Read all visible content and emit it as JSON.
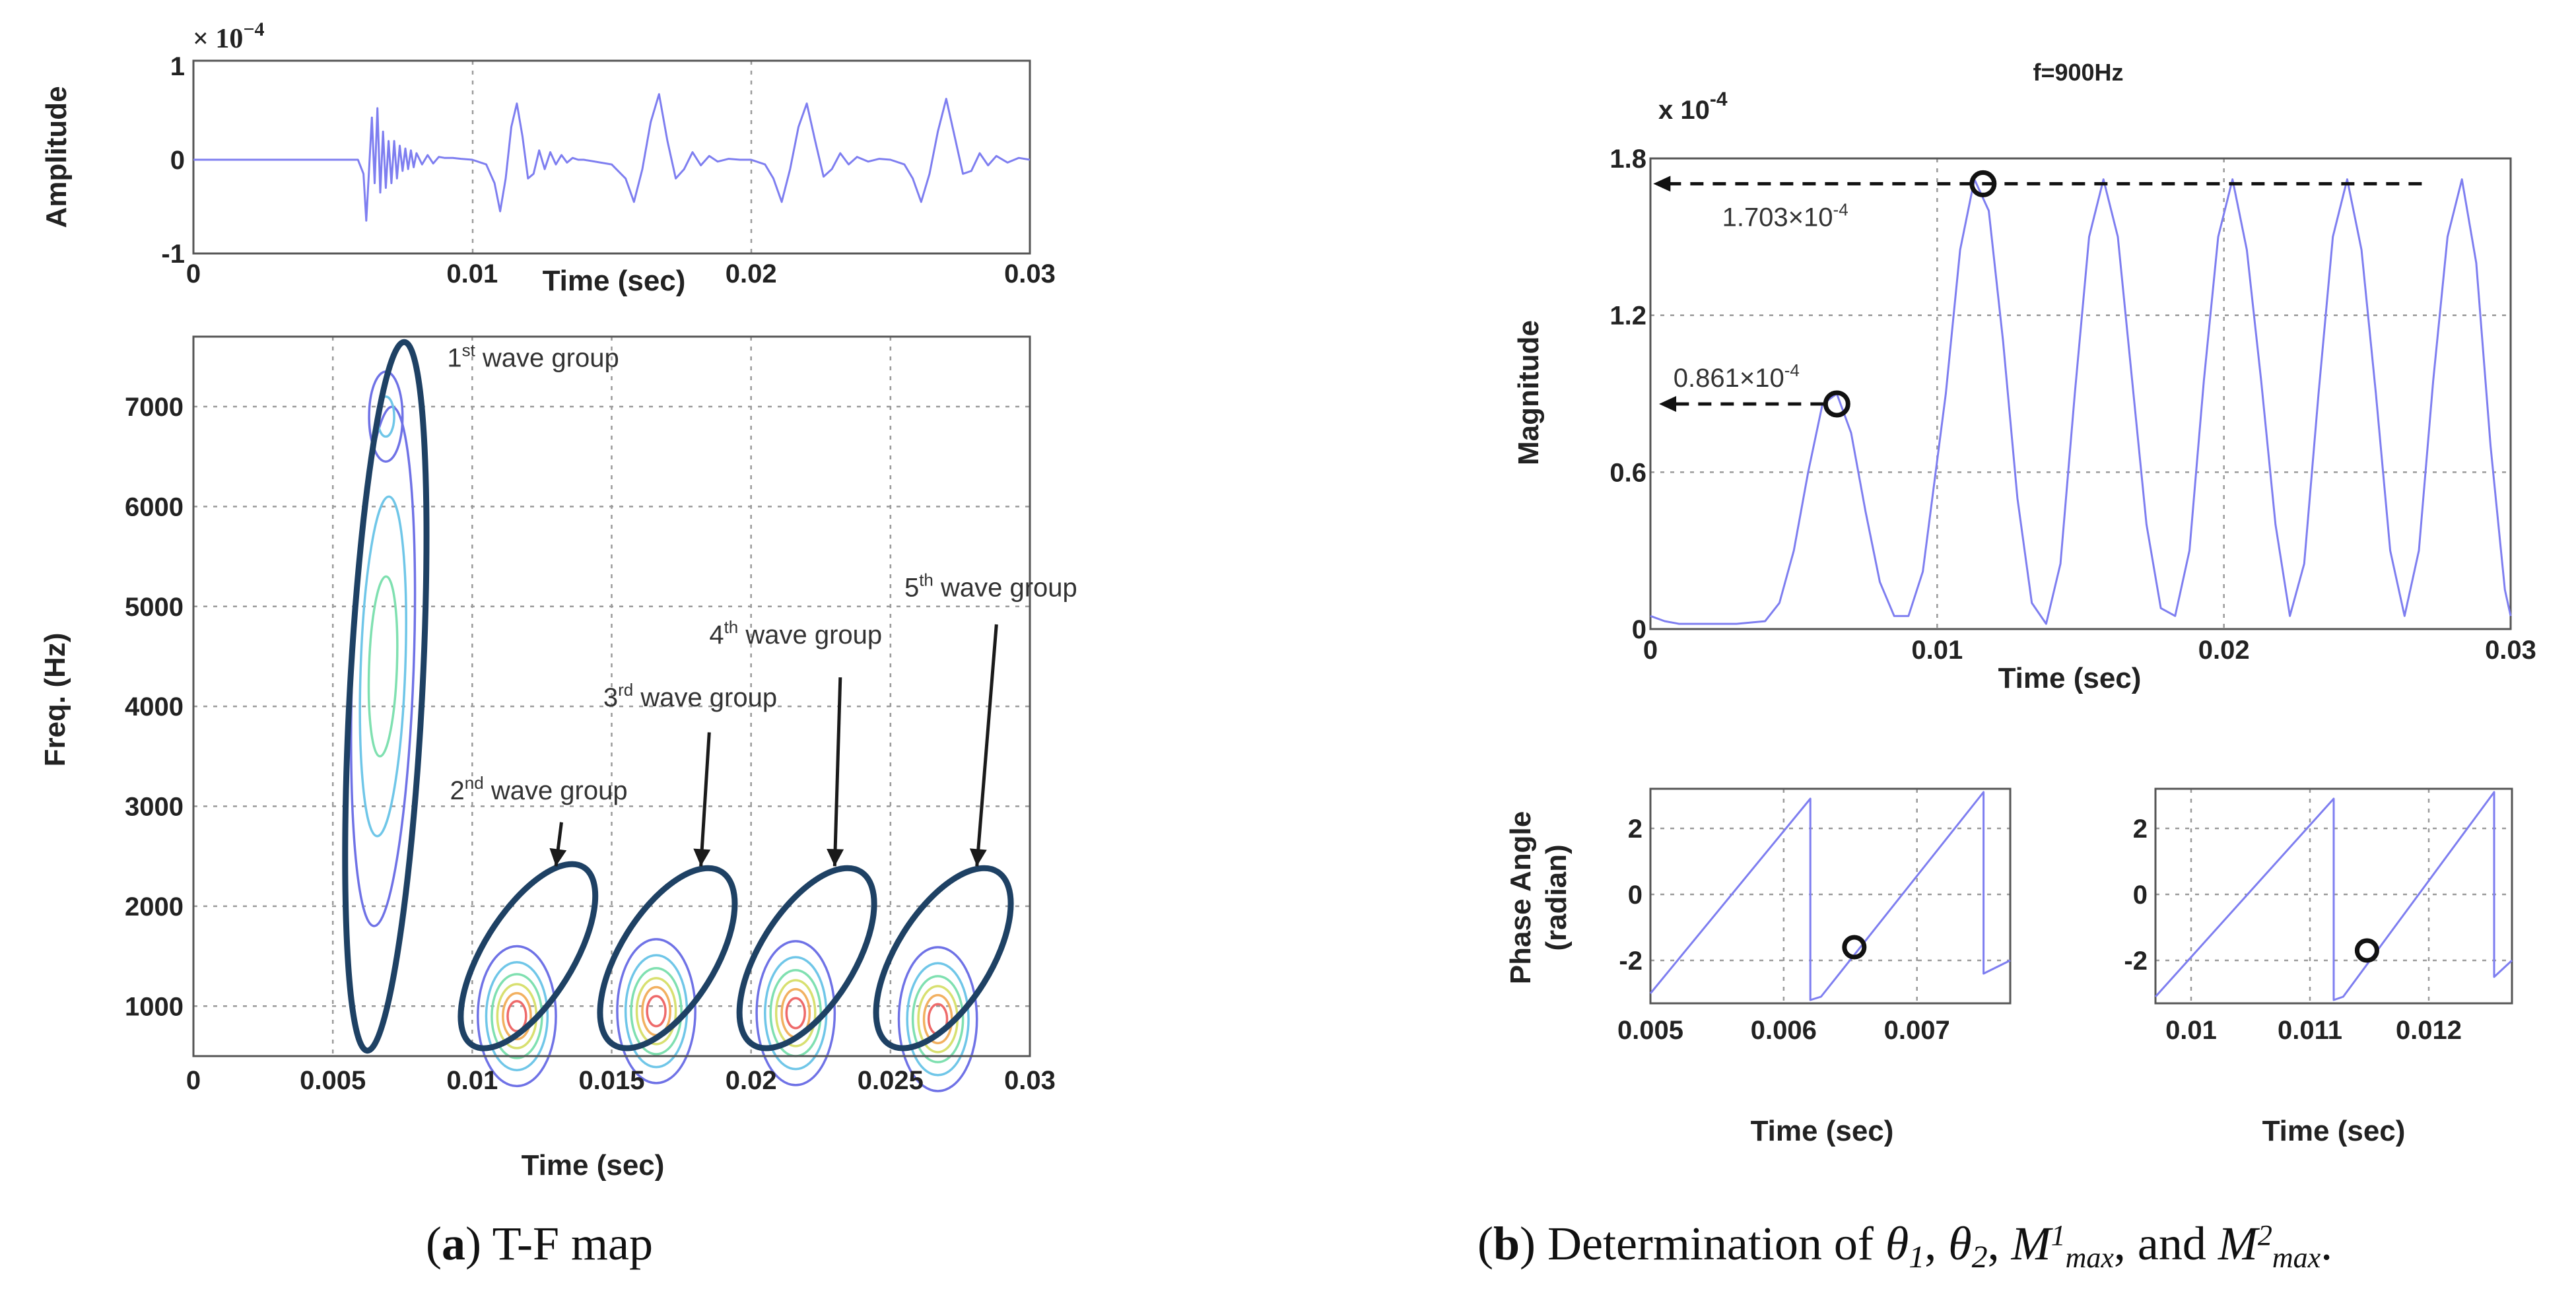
{
  "colors": {
    "signal": "#7e7ef0",
    "ellipse": "#1e4164",
    "grid": "#9a9a9a",
    "contour_levels": [
      "#6f72e6",
      "#6fc6e8",
      "#7fe0b0",
      "#d8e070",
      "#f2b060",
      "#ee6a6a"
    ]
  },
  "captions": {
    "a": {
      "label": "a",
      "text": ") T-F map"
    },
    "b": {
      "label": "b",
      "text_prefix": ") Determination of ",
      "theta1": "θ",
      "theta1_sub": "1",
      "sep1": ", ",
      "theta2": "θ",
      "theta2_sub": "2",
      "sep2": ", ",
      "m1": "M",
      "m1_sup": "1",
      "m1_sub": "max",
      "sep3": ", and ",
      "m2": "M",
      "m2_sup": "2",
      "m2_sub": "max",
      "end": "."
    }
  },
  "chart_data": [
    {
      "id": "amplitude",
      "type": "line",
      "title": "",
      "xlabel": "Time (sec)",
      "ylabel": "Amplitude",
      "scale_note_base": "× 10",
      "scale_note_exp": "−4",
      "xlim": [
        0,
        0.03
      ],
      "ylim": [
        -1,
        1
      ],
      "x_ticks": [
        0,
        0.01,
        0.02,
        0.03
      ],
      "x_tick_labels": [
        "0",
        "0.01",
        "0.02",
        "0.03"
      ],
      "y_ticks": [
        1,
        0,
        -1
      ],
      "y_tick_labels": [
        "1",
        "0",
        "-1"
      ],
      "grid": true,
      "series": [
        {
          "x": [
            0,
            0.0059,
            0.0061,
            0.0062,
            0.0063,
            0.0064,
            0.0065,
            0.0066,
            0.0067,
            0.0068,
            0.0069,
            0.007,
            0.0071,
            0.0072,
            0.0073,
            0.0074,
            0.0075,
            0.0076,
            0.0077,
            0.0078,
            0.0079,
            0.008,
            0.0082,
            0.0084,
            0.0086,
            0.0088,
            0.009,
            0.0093,
            0.0096,
            0.01,
            0.0105,
            0.0108,
            0.011,
            0.0112,
            0.0114,
            0.0116,
            0.0118,
            0.012,
            0.0122,
            0.0124,
            0.0126,
            0.0128,
            0.013,
            0.0132,
            0.0134,
            0.0136,
            0.0138,
            0.014,
            0.015,
            0.0155,
            0.0158,
            0.0161,
            0.0164,
            0.0167,
            0.017,
            0.0173,
            0.0176,
            0.0179,
            0.0182,
            0.0185,
            0.0188,
            0.0192,
            0.0196,
            0.02,
            0.0205,
            0.0208,
            0.0211,
            0.0214,
            0.0217,
            0.022,
            0.0223,
            0.0226,
            0.0229,
            0.0232,
            0.0235,
            0.0238,
            0.0242,
            0.0246,
            0.025,
            0.0255,
            0.0258,
            0.0261,
            0.0264,
            0.0267,
            0.027,
            0.0273,
            0.0276,
            0.0279,
            0.0282,
            0.0285,
            0.0288,
            0.0292,
            0.0296,
            0.03
          ],
          "y": [
            0,
            0,
            -0.15,
            -0.65,
            -0.1,
            0.45,
            -0.25,
            0.55,
            -0.35,
            0.3,
            -0.3,
            0.2,
            -0.25,
            0.2,
            -0.2,
            0.15,
            -0.12,
            0.12,
            -0.1,
            0.1,
            -0.08,
            0.07,
            -0.05,
            0.05,
            -0.04,
            0.03,
            0.02,
            0.02,
            0.01,
            0,
            -0.05,
            -0.25,
            -0.55,
            -0.2,
            0.35,
            0.6,
            0.25,
            -0.2,
            -0.15,
            0.1,
            -0.1,
            0.08,
            -0.05,
            0.05,
            -0.03,
            0.02,
            0,
            0,
            -0.05,
            -0.2,
            -0.45,
            -0.1,
            0.4,
            0.7,
            0.2,
            -0.2,
            -0.1,
            0.08,
            -0.06,
            0.04,
            -0.02,
            0.01,
            0,
            0,
            -0.05,
            -0.2,
            -0.45,
            -0.1,
            0.35,
            0.6,
            0.2,
            -0.18,
            -0.1,
            0.07,
            -0.05,
            0.03,
            -0.02,
            0.01,
            0,
            -0.05,
            -0.2,
            -0.45,
            -0.15,
            0.3,
            0.65,
            0.25,
            -0.15,
            -0.12,
            0.07,
            -0.06,
            0.04,
            -0.03,
            0.02,
            0
          ]
        }
      ]
    },
    {
      "id": "tf_map",
      "type": "heatmap",
      "title": "",
      "xlabel": "Time (sec)",
      "ylabel": "Freq. (Hz)",
      "xlim": [
        0,
        0.03
      ],
      "ylim": [
        500,
        7700
      ],
      "x_ticks": [
        0,
        0.005,
        0.01,
        0.015,
        0.02,
        0.025,
        0.03
      ],
      "x_tick_labels": [
        "0",
        "0.005",
        "0.01",
        "0.015",
        "0.02",
        "0.025",
        "0.03"
      ],
      "y_ticks": [
        1000,
        2000,
        3000,
        4000,
        5000,
        6000,
        7000
      ],
      "y_tick_labels": [
        "1000",
        "2000",
        "3000",
        "4000",
        "5000",
        "6000",
        "7000"
      ],
      "grid": true,
      "wave_groups": [
        {
          "label": "1",
          "sup": "st",
          "rest": " wave group",
          "center": [
            0.0069,
            4100
          ],
          "radii": [
            0.0013,
            3550
          ],
          "tilt_deg": 3,
          "label_at": [
            0.0091,
            7400
          ],
          "arrow_from": null,
          "arrow_to": null
        },
        {
          "label": "2",
          "sup": "nd",
          "rest": " wave group",
          "center": [
            0.012,
            1500
          ],
          "radii": [
            0.0016,
            1050
          ],
          "tilt_deg": 32,
          "label_at": [
            0.0092,
            3070
          ],
          "arrow_from": [
            0.0132,
            2840
          ],
          "arrow_to": [
            0.013,
            2400
          ]
        },
        {
          "label": "3",
          "sup": "rd",
          "rest": " wave group",
          "center": [
            0.017,
            1480
          ],
          "radii": [
            0.0017,
            1020
          ],
          "tilt_deg": 32,
          "label_at": [
            0.0147,
            4000
          ],
          "arrow_from": [
            0.0185,
            3740
          ],
          "arrow_to": [
            0.0182,
            2400
          ]
        },
        {
          "label": "4",
          "sup": "th",
          "rest": " wave group",
          "center": [
            0.022,
            1480
          ],
          "radii": [
            0.0017,
            1020
          ],
          "tilt_deg": 32,
          "label_at": [
            0.0185,
            4630
          ],
          "arrow_from": [
            0.0232,
            4290
          ],
          "arrow_to": [
            0.023,
            2400
          ]
        },
        {
          "label": "5",
          "sup": "th",
          "rest": " wave group",
          "center": [
            0.0269,
            1480
          ],
          "radii": [
            0.0017,
            1020
          ],
          "tilt_deg": 32,
          "label_at": [
            0.0255,
            5100
          ],
          "arrow_from": [
            0.0288,
            4820
          ],
          "arrow_to": [
            0.0281,
            2400
          ]
        }
      ],
      "contour_blobs": [
        {
          "center": [
            0.0068,
            4400
          ],
          "radii": [
            [
              0.0011,
              2600
            ],
            [
              0.0008,
              1700
            ],
            [
              0.0005,
              900
            ]
          ],
          "tilt_deg": 2
        },
        {
          "center": [
            0.0069,
            6900
          ],
          "radii": [
            [
              0.0006,
              450
            ],
            [
              0.0003,
              200
            ]
          ],
          "tilt_deg": 0
        },
        {
          "center": [
            0.0116,
            900
          ],
          "radii": [
            [
              0.0014,
              700
            ],
            [
              0.0011,
              540
            ],
            [
              0.0009,
              420
            ],
            [
              0.0007,
              320
            ],
            [
              0.0005,
              230
            ],
            [
              0.00033,
              150
            ]
          ],
          "tilt_deg": 0
        },
        {
          "center": [
            0.0166,
            950
          ],
          "radii": [
            [
              0.0014,
              720
            ],
            [
              0.0011,
              560
            ],
            [
              0.0009,
              430
            ],
            [
              0.0007,
              330
            ],
            [
              0.0005,
              240
            ],
            [
              0.00033,
              150
            ]
          ],
          "tilt_deg": 0
        },
        {
          "center": [
            0.0216,
            930
          ],
          "radii": [
            [
              0.0014,
              720
            ],
            [
              0.0011,
              560
            ],
            [
              0.0009,
              430
            ],
            [
              0.0007,
              330
            ],
            [
              0.0005,
              240
            ],
            [
              0.00033,
              150
            ]
          ],
          "tilt_deg": 0
        },
        {
          "center": [
            0.0267,
            870
          ],
          "radii": [
            [
              0.0014,
              720
            ],
            [
              0.0011,
              560
            ],
            [
              0.0009,
              430
            ],
            [
              0.0007,
              330
            ],
            [
              0.0005,
              240
            ],
            [
              0.00033,
              150
            ]
          ],
          "tilt_deg": 0
        }
      ]
    },
    {
      "id": "magnitude",
      "type": "line",
      "title": "f=900Hz",
      "xlabel": "Time  (sec)",
      "ylabel": "Magnitude",
      "scale_note_base": "x 10",
      "scale_note_exp": "-4",
      "xlim": [
        0,
        0.03
      ],
      "ylim": [
        0,
        1.8
      ],
      "x_ticks": [
        0,
        0.01,
        0.02,
        0.03
      ],
      "x_tick_labels": [
        "0",
        "0.01",
        "0.02",
        "0.03"
      ],
      "y_ticks": [
        0,
        0.6,
        1.2,
        1.8
      ],
      "y_tick_labels": [
        "0",
        "0.6",
        "1.2",
        "1.8"
      ],
      "grid": true,
      "series": [
        {
          "x": [
            0,
            0.0005,
            0.001,
            0.002,
            0.003,
            0.004,
            0.0045,
            0.005,
            0.0055,
            0.006,
            0.0065,
            0.007,
            0.0075,
            0.008,
            0.0085,
            0.009,
            0.0095,
            0.0103,
            0.0108,
            0.0113,
            0.0118,
            0.0123,
            0.0128,
            0.0133,
            0.0138,
            0.0143,
            0.0148,
            0.0153,
            0.0158,
            0.0163,
            0.0168,
            0.0173,
            0.0178,
            0.0183,
            0.0188,
            0.0193,
            0.0198,
            0.0203,
            0.0208,
            0.0213,
            0.0218,
            0.0223,
            0.0228,
            0.0233,
            0.0238,
            0.0243,
            0.0248,
            0.0253,
            0.0258,
            0.0263,
            0.0268,
            0.0273,
            0.0278,
            0.0283,
            0.0288,
            0.0293,
            0.0298,
            0.03
          ],
          "y": [
            0.05,
            0.03,
            0.02,
            0.02,
            0.02,
            0.03,
            0.1,
            0.3,
            0.6,
            0.86,
            0.9,
            0.75,
            0.45,
            0.18,
            0.05,
            0.05,
            0.22,
            0.9,
            1.45,
            1.72,
            1.6,
            1.1,
            0.5,
            0.1,
            0.02,
            0.25,
            0.9,
            1.5,
            1.72,
            1.5,
            0.95,
            0.4,
            0.08,
            0.05,
            0.3,
            0.95,
            1.5,
            1.72,
            1.45,
            0.95,
            0.4,
            0.05,
            0.25,
            0.9,
            1.5,
            1.72,
            1.45,
            0.9,
            0.3,
            0.05,
            0.3,
            0.95,
            1.5,
            1.72,
            1.4,
            0.7,
            0.15,
            0.05
          ]
        }
      ],
      "annotations": [
        {
          "text_base": "0.861×10",
          "text_exp": "-4",
          "point": [
            0.0065,
            0.861
          ],
          "arrow_to_x": 0.0003,
          "label_x": 0.0008
        },
        {
          "text_base": "1.703×10",
          "text_exp": "-4",
          "point": [
            0.0116,
            1.703
          ],
          "arrow_to_x": 0.0001,
          "arrow_from_x": 0.0269,
          "label_x": 0.0025
        }
      ]
    },
    {
      "id": "phase1",
      "type": "line",
      "title": "",
      "xlabel": "Time  (sec)",
      "ylabel_lines": [
        "Phase Angle",
        "(radian)"
      ],
      "xlim": [
        0.005,
        0.0077
      ],
      "ylim": [
        -3.3,
        3.2
      ],
      "x_ticks": [
        0.005,
        0.006,
        0.007
      ],
      "x_tick_labels": [
        "0.005",
        "0.006",
        "0.007"
      ],
      "y_ticks": [
        2,
        0,
        -2
      ],
      "y_tick_labels": [
        "2",
        "0",
        "-2"
      ],
      "grid": true,
      "series": [
        {
          "x": [
            0.005,
            0.0062,
            0.0062,
            0.00628,
            0.0075,
            0.0075,
            0.0077
          ],
          "y": [
            -3.0,
            2.9,
            -3.2,
            -3.1,
            3.1,
            -2.4,
            -2.0
          ]
        }
      ],
      "marker": [
        0.00653,
        -1.6
      ]
    },
    {
      "id": "phase2",
      "type": "line",
      "title": "",
      "xlabel": "Time  (sec)",
      "xlim": [
        0.0097,
        0.0127
      ],
      "ylim": [
        -3.3,
        3.2
      ],
      "x_ticks": [
        0.01,
        0.011,
        0.012
      ],
      "x_tick_labels": [
        "0.01",
        "0.011",
        "0.012"
      ],
      "y_ticks": [
        2,
        0,
        -2
      ],
      "y_tick_labels": [
        "2",
        "0",
        "-2"
      ],
      "grid": true,
      "series": [
        {
          "x": [
            0.0097,
            0.0112,
            0.0112,
            0.01128,
            0.01255,
            0.01255,
            0.0127
          ],
          "y": [
            -3.1,
            2.9,
            -3.2,
            -3.1,
            3.1,
            -2.5,
            -2.0
          ]
        }
      ],
      "marker": [
        0.01148,
        -1.7
      ]
    }
  ]
}
